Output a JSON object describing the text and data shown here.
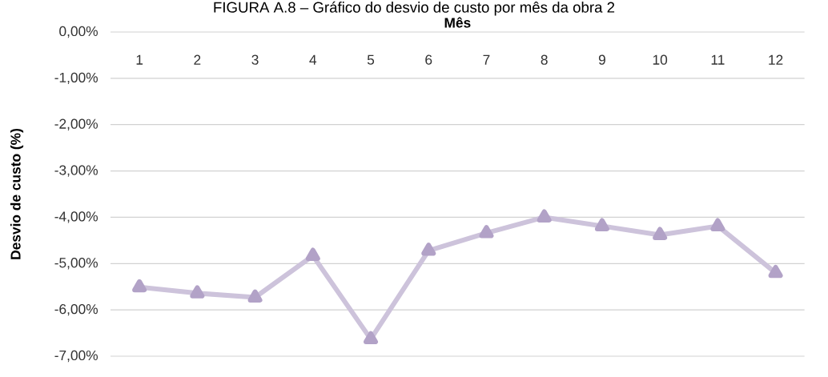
{
  "chart_data": {
    "type": "line",
    "title": "FIGURA A.8 – Gráfico do desvio de custo por mês da obra 2",
    "xlabel": "Mês",
    "ylabel": "Desvio de custo (%)",
    "categories": [
      "1",
      "2",
      "3",
      "4",
      "5",
      "6",
      "7",
      "8",
      "9",
      "10",
      "11",
      "12"
    ],
    "series": [
      {
        "color": "#b2a2c7",
        "values": [
          -5.51,
          -5.64,
          -5.73,
          -4.83,
          -6.63,
          -4.72,
          -4.34,
          -4.0,
          -4.19,
          -4.38,
          -4.19,
          -5.2
        ]
      }
    ],
    "ylim": [
      -7,
      0
    ],
    "yticks": [
      {
        "value": 0,
        "label": "0,00%"
      },
      {
        "value": -1,
        "label": "-1,00%"
      },
      {
        "value": -2,
        "label": "-2,00%"
      },
      {
        "value": -3,
        "label": "-3,00%"
      },
      {
        "value": -4,
        "label": "-4,00%"
      },
      {
        "value": -5,
        "label": "-5,00%"
      },
      {
        "value": -6,
        "label": "-6,00%"
      },
      {
        "value": -7,
        "label": "-7,00%"
      }
    ],
    "grid": "y",
    "marker": "triangle",
    "line_style": "solid"
  }
}
